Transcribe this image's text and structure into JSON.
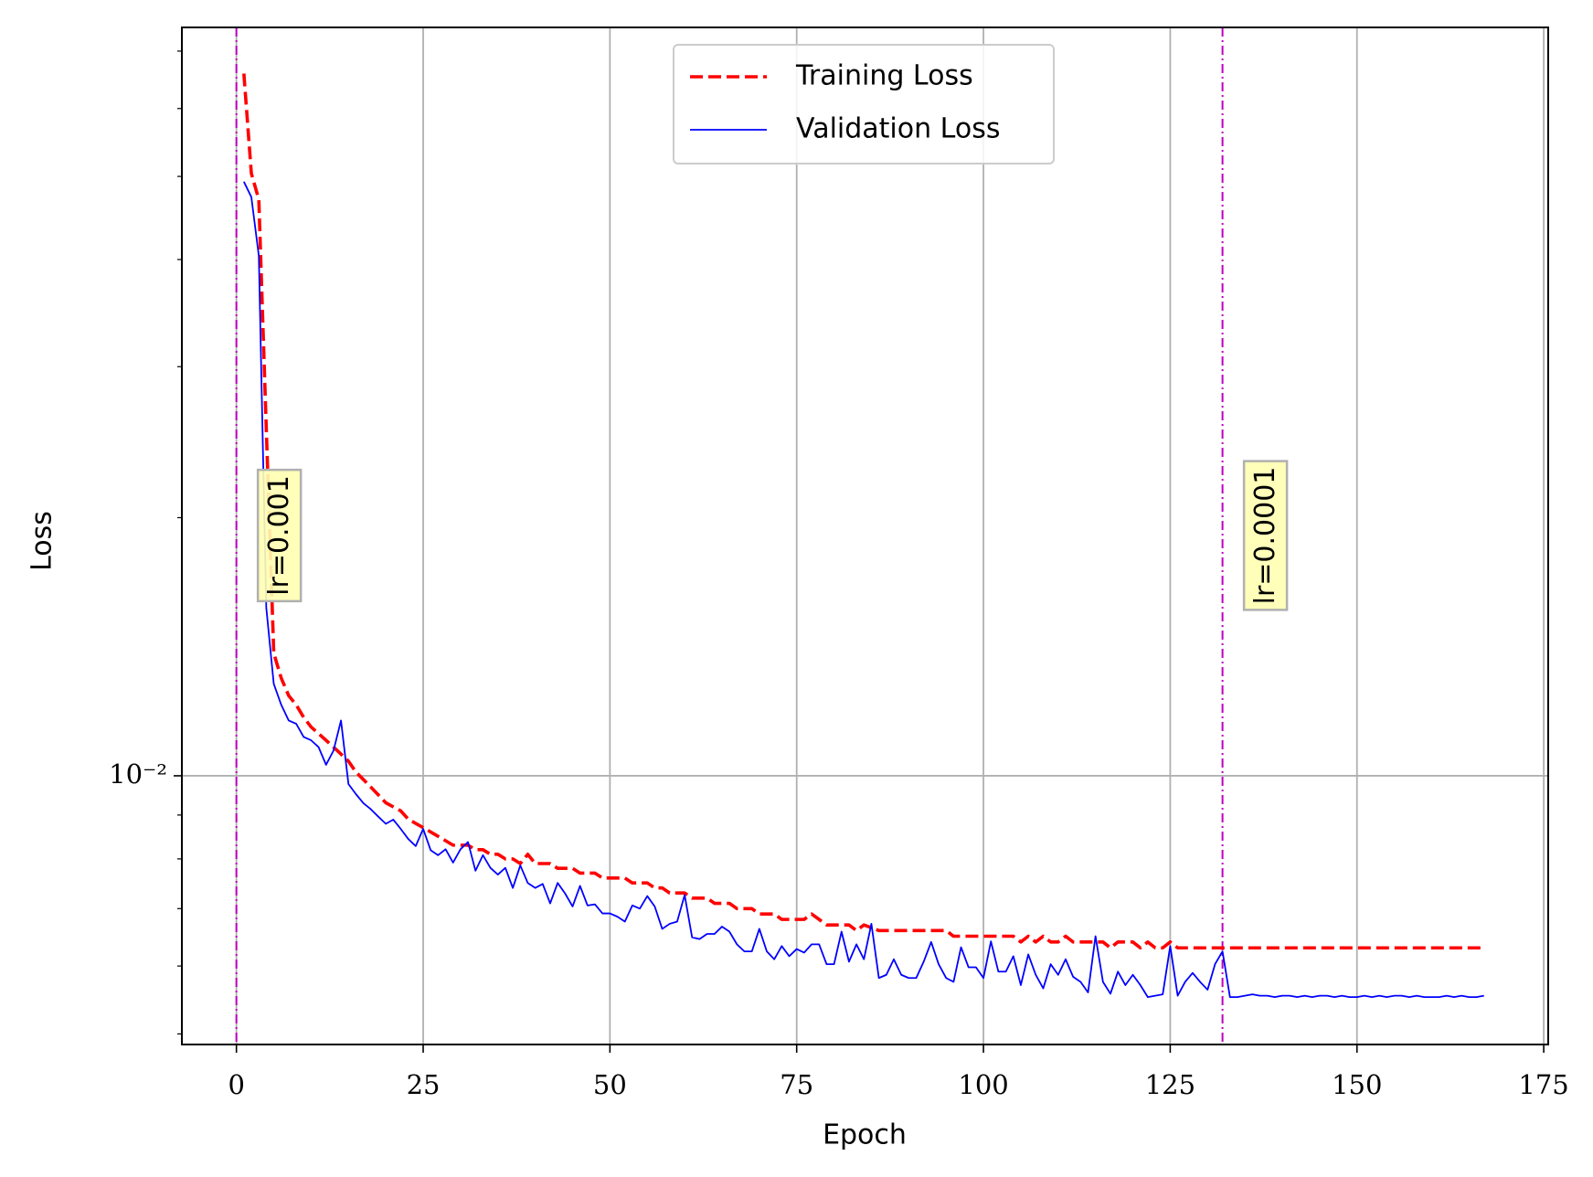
{
  "chart_data": {
    "type": "line",
    "x_label": "Epoch",
    "y_label": "Loss",
    "xlim": [
      -7.3,
      175.6
    ],
    "xticks": [
      0,
      25,
      50,
      75,
      100,
      125,
      150,
      175
    ],
    "ylim": [
      0.00486,
      0.0746
    ],
    "yscale": "log",
    "yticks": [
      {
        "value": 0.01,
        "label": "10⁻²"
      }
    ],
    "yminorticks": [
      0.005,
      0.006,
      0.007,
      0.008,
      0.009,
      0.02,
      0.03,
      0.04,
      0.05,
      0.06,
      0.07
    ],
    "grid": true,
    "legend": "upper center",
    "x": [
      1,
      2,
      3,
      4,
      5,
      6,
      7,
      8,
      9,
      10,
      11,
      12,
      13,
      14,
      15,
      16,
      17,
      18,
      19,
      20,
      21,
      22,
      23,
      24,
      25,
      26,
      27,
      28,
      29,
      30,
      31,
      32,
      33,
      34,
      35,
      36,
      37,
      38,
      39,
      40,
      41,
      42,
      43,
      44,
      45,
      46,
      47,
      48,
      49,
      50,
      51,
      52,
      53,
      54,
      55,
      56,
      57,
      58,
      59,
      60,
      61,
      62,
      63,
      64,
      65,
      66,
      67,
      68,
      69,
      70,
      71,
      72,
      73,
      74,
      75,
      76,
      77,
      78,
      79,
      80,
      81,
      82,
      83,
      84,
      85,
      86,
      87,
      88,
      89,
      90,
      91,
      92,
      93,
      94,
      95,
      96,
      97,
      98,
      99,
      100,
      101,
      102,
      103,
      104,
      105,
      106,
      107,
      108,
      109,
      110,
      111,
      112,
      113,
      114,
      115,
      116,
      117,
      118,
      119,
      120,
      121,
      122,
      123,
      124,
      125,
      126,
      127,
      128,
      129,
      130,
      131,
      132,
      133,
      134,
      135,
      136,
      137,
      138,
      139,
      140,
      141,
      142,
      143,
      144,
      145,
      146,
      147,
      148,
      149,
      150,
      151,
      152,
      153,
      154,
      155,
      156,
      157,
      158,
      159,
      160,
      161,
      162,
      163,
      164,
      165,
      166,
      167
    ],
    "series": [
      {
        "name": "Training Loss",
        "color": "#ff0000",
        "dash": "dashed",
        "values": [
          0.0659,
          0.0504,
          0.047,
          0.0254,
          0.0139,
          0.013,
          0.0124,
          0.0121,
          0.0117,
          0.0114,
          0.0112,
          0.011,
          0.0108,
          0.0106,
          0.0104,
          0.0101,
          0.0099,
          0.0097,
          0.0095,
          0.0093,
          0.0092,
          0.0091,
          0.0089,
          0.0088,
          0.0087,
          0.0086,
          0.0085,
          0.0084,
          0.0083,
          0.0083,
          0.0083,
          0.0082,
          0.0082,
          0.0081,
          0.0081,
          0.008,
          0.008,
          0.0079,
          0.0081,
          0.0079,
          0.0079,
          0.0079,
          0.0078,
          0.0078,
          0.0078,
          0.0077,
          0.0077,
          0.0077,
          0.0076,
          0.0076,
          0.0076,
          0.0076,
          0.0075,
          0.0075,
          0.0075,
          0.0074,
          0.0074,
          0.0073,
          0.0073,
          0.0073,
          0.0072,
          0.0072,
          0.0072,
          0.0071,
          0.0071,
          0.0071,
          0.007,
          0.007,
          0.007,
          0.0069,
          0.0069,
          0.0069,
          0.0068,
          0.0068,
          0.0068,
          0.0068,
          0.0069,
          0.0068,
          0.0067,
          0.0067,
          0.0067,
          0.0067,
          0.0066,
          0.0067,
          0.00665,
          0.0066,
          0.0066,
          0.0066,
          0.0066,
          0.0066,
          0.0066,
          0.0066,
          0.0066,
          0.0066,
          0.0066,
          0.0065,
          0.0065,
          0.0065,
          0.0065,
          0.0065,
          0.0065,
          0.0065,
          0.0065,
          0.0065,
          0.0064,
          0.0065,
          0.0064,
          0.0065,
          0.0064,
          0.0064,
          0.0065,
          0.0064,
          0.0064,
          0.0064,
          0.0064,
          0.0064,
          0.0063,
          0.0064,
          0.0064,
          0.0064,
          0.0063,
          0.0064,
          0.0063,
          0.0063,
          0.0064,
          0.0063,
          0.0063,
          0.0063,
          0.0063,
          0.0063,
          0.0063,
          0.0063,
          0.0063,
          0.0063,
          0.0063,
          0.0063,
          0.0063,
          0.0063,
          0.0063,
          0.0063,
          0.0063,
          0.0063,
          0.0063,
          0.0063,
          0.0063,
          0.0063,
          0.0063,
          0.0063,
          0.0063,
          0.0063,
          0.0063,
          0.0063,
          0.0063,
          0.0063,
          0.0063,
          0.0063,
          0.0063,
          0.0063,
          0.0063,
          0.0063,
          0.0063,
          0.0063,
          0.0063,
          0.0063,
          0.0063,
          0.0063,
          0.0063
        ]
      },
      {
        "name": "Validation Loss",
        "color": "#0000ff",
        "dash": "solid",
        "values": [
          0.0493,
          0.0473,
          0.0404,
          0.0157,
          0.0128,
          0.0121,
          0.0116,
          0.0115,
          0.0111,
          0.011,
          0.0108,
          0.0103,
          0.0107,
          0.0116,
          0.00978,
          0.00952,
          0.00929,
          0.00914,
          0.00896,
          0.00879,
          0.00889,
          0.00867,
          0.00844,
          0.00828,
          0.00867,
          0.00819,
          0.00808,
          0.00821,
          0.00792,
          0.00821,
          0.00837,
          0.00775,
          0.00808,
          0.00781,
          0.00767,
          0.00781,
          0.0074,
          0.00786,
          0.0075,
          0.0074,
          0.00748,
          0.0071,
          0.0075,
          0.00729,
          0.00704,
          0.00744,
          0.00706,
          0.00708,
          0.00691,
          0.00691,
          0.00685,
          0.00676,
          0.00706,
          0.007,
          0.00724,
          0.00704,
          0.00663,
          0.00672,
          0.00676,
          0.00726,
          0.00648,
          0.00645,
          0.00654,
          0.00654,
          0.00667,
          0.00658,
          0.00636,
          0.00624,
          0.00624,
          0.00663,
          0.00624,
          0.00611,
          0.00633,
          0.00616,
          0.00628,
          0.00622,
          0.00636,
          0.00636,
          0.00603,
          0.00603,
          0.00658,
          0.00607,
          0.00636,
          0.00611,
          0.00672,
          0.00581,
          0.00586,
          0.00611,
          0.00586,
          0.00581,
          0.00581,
          0.00607,
          0.0064,
          0.00603,
          0.00581,
          0.00575,
          0.00631,
          0.00598,
          0.00598,
          0.00581,
          0.00641,
          0.00591,
          0.00591,
          0.00616,
          0.0057,
          0.00619,
          0.00586,
          0.00565,
          0.00603,
          0.00586,
          0.00611,
          0.00583,
          0.00575,
          0.00559,
          0.0065,
          0.00575,
          0.00557,
          0.00591,
          0.0057,
          0.00586,
          0.0057,
          0.00552,
          0.00554,
          0.00556,
          0.00633,
          0.00554,
          0.00575,
          0.00589,
          0.00575,
          0.00563,
          0.00603,
          0.00624,
          0.00552,
          0.00552,
          0.00554,
          0.00556,
          0.00554,
          0.00554,
          0.00552,
          0.00554,
          0.00554,
          0.00552,
          0.00554,
          0.00552,
          0.00554,
          0.00554,
          0.00552,
          0.00554,
          0.00552,
          0.00552,
          0.00554,
          0.00552,
          0.00554,
          0.00552,
          0.00554,
          0.00554,
          0.00552,
          0.00554,
          0.00552,
          0.00552,
          0.00552,
          0.00554,
          0.00552,
          0.00554,
          0.00552,
          0.00552,
          0.00554
        ]
      }
    ],
    "vlines": [
      {
        "x": 0,
        "label": "lr=0.001",
        "color": "#bf00bf"
      },
      {
        "x": 132,
        "label": "lr=0.0001",
        "color": "#bf00bf"
      }
    ]
  }
}
